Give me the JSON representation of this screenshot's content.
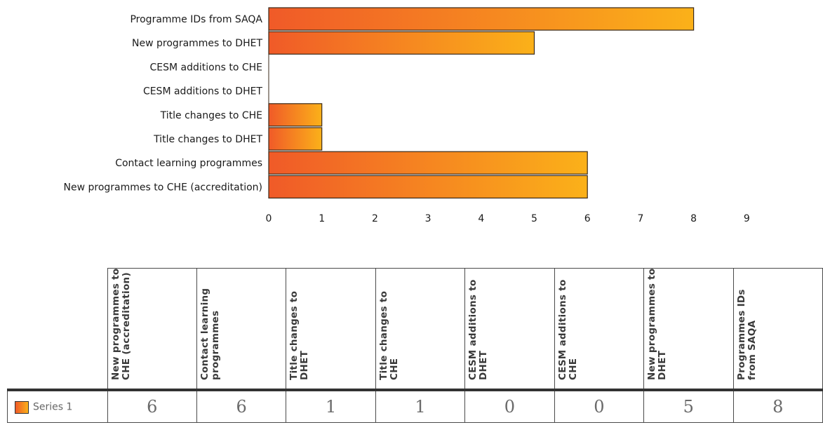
{
  "chart_data": {
    "type": "bar",
    "orientation": "horizontal",
    "categories": [
      "Programme IDs from SAQA",
      "New programmes to DHET",
      "CESM additions to CHE",
      "CESM additions to DHET",
      "Title changes to CHE",
      "Title changes to DHET",
      "Contact learning programmes",
      "New programmes to CHE (accreditation)"
    ],
    "series": [
      {
        "name": "Series 1",
        "values": [
          8,
          5,
          0,
          0,
          1,
          1,
          6,
          6
        ]
      }
    ],
    "xlim": [
      0,
      9
    ],
    "x_ticks": [
      "0",
      "1",
      "2",
      "3",
      "4",
      "5",
      "6",
      "7",
      "8",
      "9"
    ],
    "grid": false,
    "bar_gradient": [
      "#f05a28",
      "#fbb119"
    ],
    "bar_border": "#3a2a1a"
  },
  "data_table": {
    "columns": [
      "New programmes to CHE (accreditation)",
      "Contact learning programmes",
      "Title changes to DHET",
      "Title changes to CHE",
      "CESM additions to DHET",
      "CESM additions to CHE",
      "New programmes to DHET",
      "Programmes IDs from SAQA"
    ],
    "series_label": "Series 1",
    "values": [
      "6",
      "6",
      "1",
      "1",
      "0",
      "0",
      "5",
      "8"
    ]
  }
}
